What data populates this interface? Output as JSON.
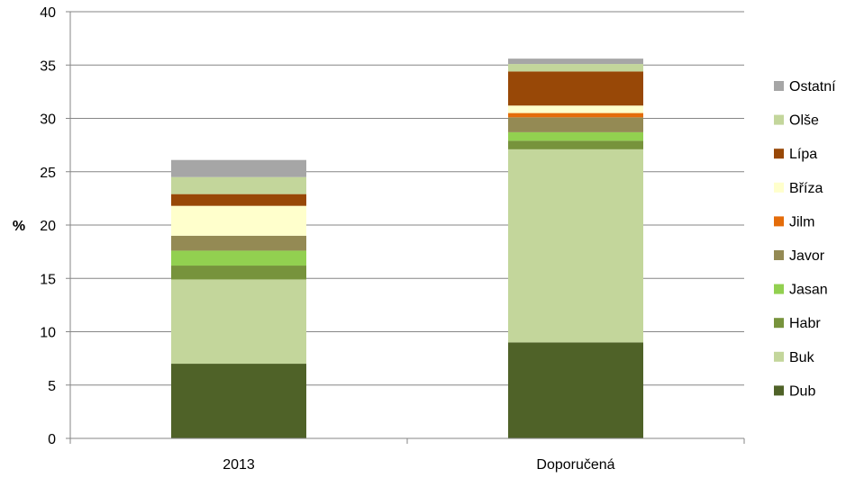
{
  "chart_data": {
    "type": "bar",
    "stacked": true,
    "categories": [
      "2013",
      "Doporučená"
    ],
    "ylabel": "%",
    "ylim": [
      0,
      40
    ],
    "yticks": [
      0,
      5,
      10,
      15,
      20,
      25,
      30,
      35,
      40
    ],
    "grid": true,
    "legend_position": "right",
    "series": [
      {
        "name": "Dub",
        "color": "#4f6228",
        "values": [
          7.0,
          9.0
        ]
      },
      {
        "name": "Buk",
        "color": "#c3d69b",
        "values": [
          7.9,
          18.1
        ]
      },
      {
        "name": "Habr",
        "color": "#77933c",
        "values": [
          1.3,
          0.8
        ]
      },
      {
        "name": "Jasan",
        "color": "#92d050",
        "values": [
          1.4,
          0.8
        ]
      },
      {
        "name": "Javor",
        "color": "#948a54",
        "values": [
          1.4,
          1.4
        ]
      },
      {
        "name": "Jilm",
        "color": "#e46c0a",
        "values": [
          0.0,
          0.4
        ]
      },
      {
        "name": "Bříza",
        "color": "#ffffcc",
        "values": [
          2.8,
          0.7
        ]
      },
      {
        "name": "Lípa",
        "color": "#984807",
        "values": [
          1.1,
          3.2
        ]
      },
      {
        "name": "Olše",
        "color": "#c3d69b",
        "values": [
          1.6,
          0.7
        ]
      },
      {
        "name": "Ostatní",
        "color": "#a6a6a6",
        "values": [
          1.6,
          0.5
        ]
      }
    ]
  }
}
